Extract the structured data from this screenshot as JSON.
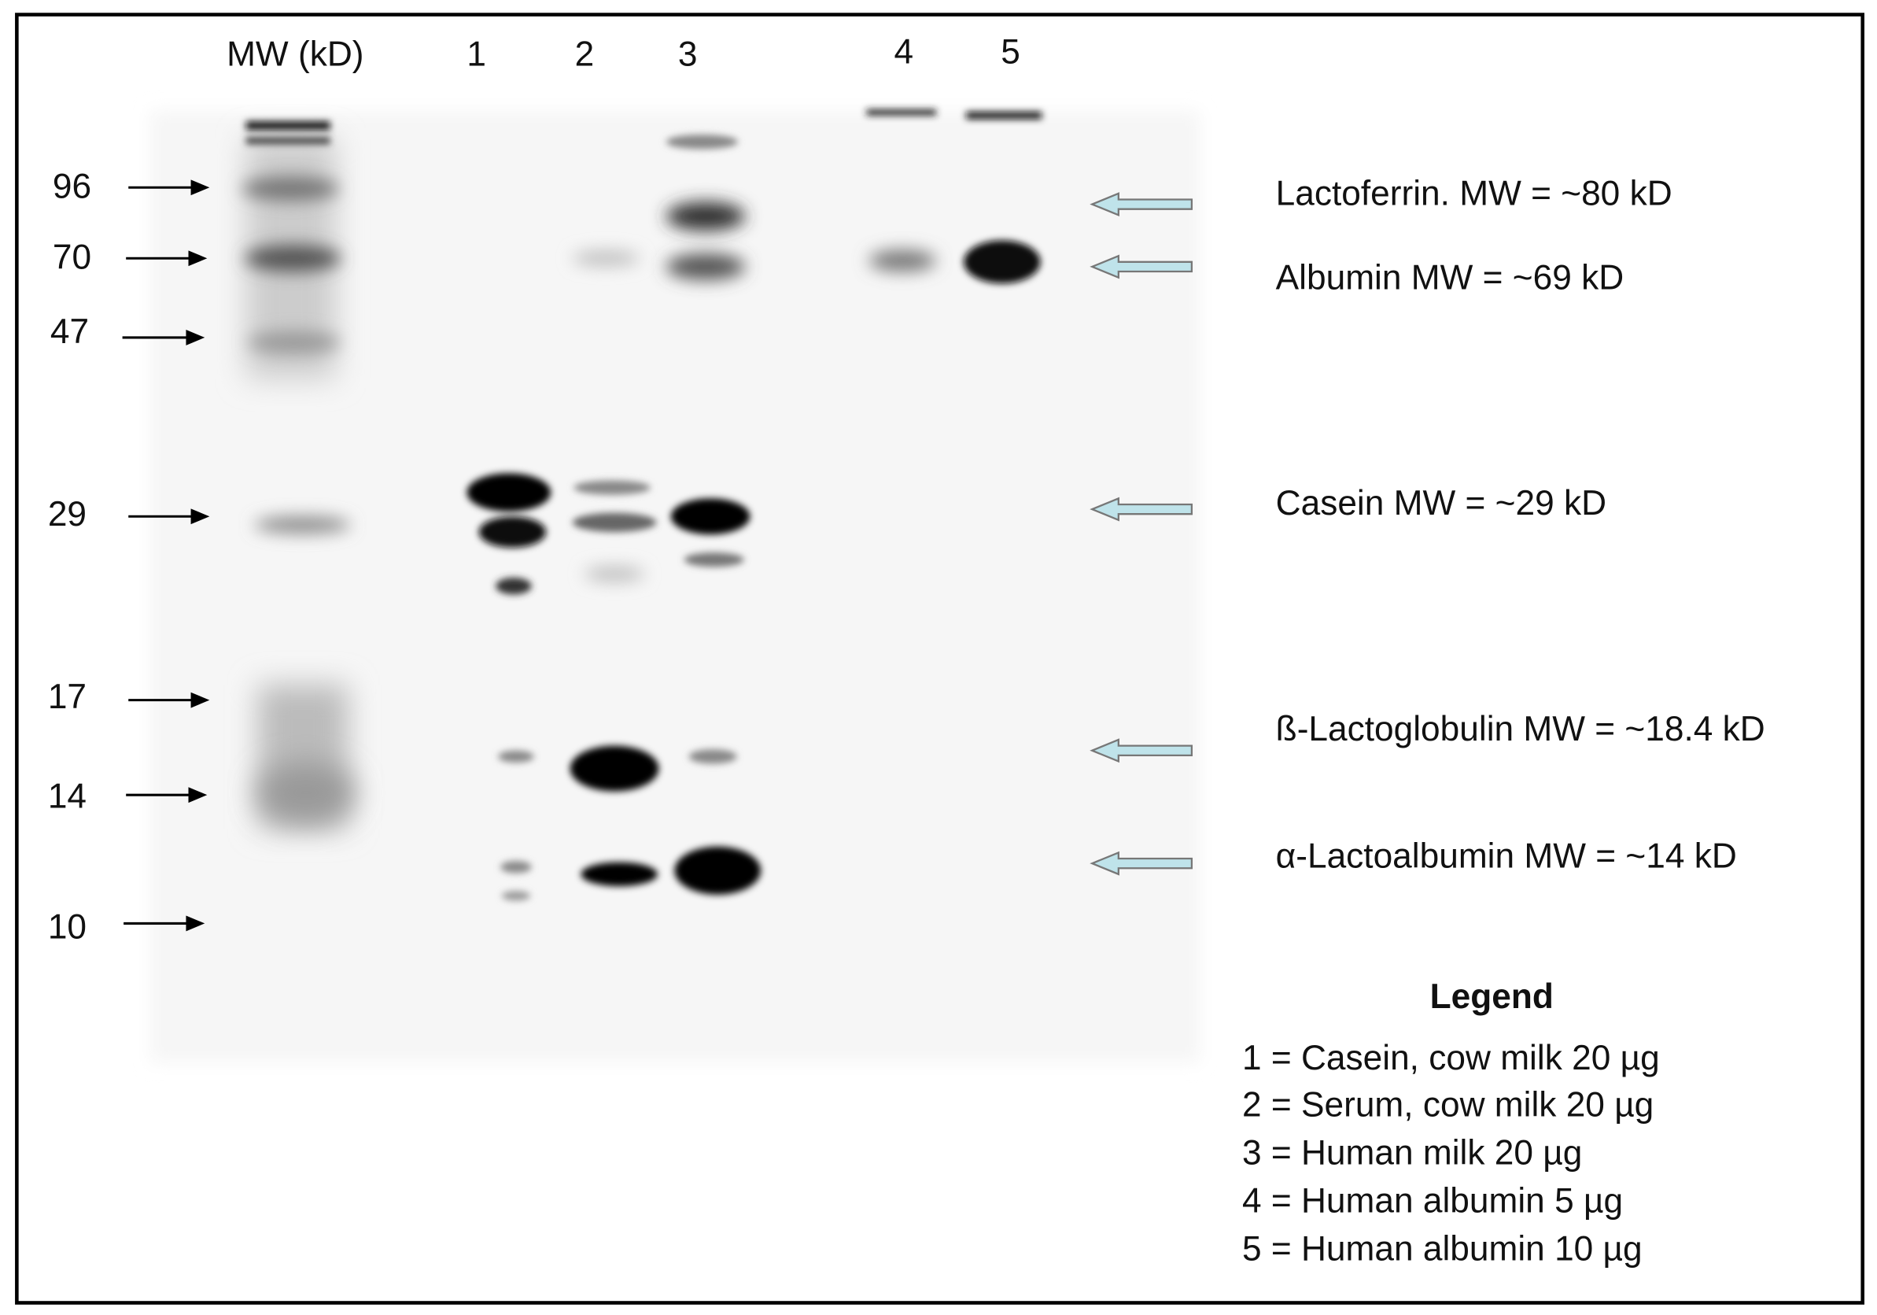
{
  "header": {
    "mw_label": "MW (kD)",
    "lanes": [
      "1",
      "2",
      "3",
      "4",
      "5"
    ]
  },
  "markers": [
    "96",
    "70",
    "47",
    "29",
    "17",
    "14",
    "10"
  ],
  "annotations": [
    "Lactoferrin. MW = ~80 kD",
    "Albumin MW = ~69 kD",
    "Casein MW = ~29 kD",
    "ß-Lactoglobulin MW = ~18.4 kD",
    "α-Lactoalbumin MW = ~14 kD"
  ],
  "legend": {
    "title": "Legend",
    "items": [
      "1 = Casein, cow milk 20 µg",
      "2 = Serum, cow milk 20 µg",
      "3 = Human milk 20 µg",
      "4 = Human albumin 5 µg",
      "5 = Human albumin 10 µg"
    ]
  }
}
